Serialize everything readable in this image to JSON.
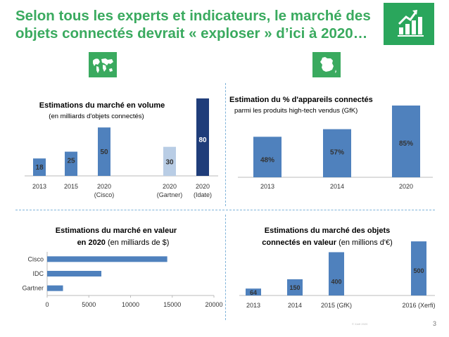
{
  "title_lines": [
    "Selon tous les experts et indicateurs, le marché des",
    "objets connectés devrait « exploser » d’ici à 2020…"
  ],
  "page_number": "3",
  "copyright": "© Xerfi 2020",
  "colors": {
    "title": "#3aaa5f",
    "bar": "#4f81bd",
    "bar_light": "#b9cde5",
    "bar_dark": "#1f3d7a",
    "badge": "#3aaa5f"
  },
  "chart_data": [
    {
      "type": "bar",
      "title": "Estimations du marché en volume",
      "subtitle": "(en milliards d'objets connectés)",
      "categories": [
        [
          "2013"
        ],
        [
          "2015"
        ],
        [
          "2020",
          "(Cisco)"
        ],
        [
          "2020",
          "(Gartner)"
        ],
        [
          "2020",
          "(Idate)"
        ]
      ],
      "values": [
        18,
        25,
        50,
        30,
        80
      ],
      "labels": [
        "18",
        "25",
        "50",
        "30",
        "80"
      ],
      "ylim": [
        0,
        85
      ]
    },
    {
      "type": "bar",
      "title": "Estimation du % d'appareils connectés",
      "subtitle": "parmi les produits high-tech vendus (GfK)",
      "categories": [
        "2013",
        "2014",
        "2020"
      ],
      "values": [
        48,
        57,
        85
      ],
      "labels": [
        "48%",
        "57%",
        "85%"
      ],
      "ylim": [
        0,
        90
      ]
    },
    {
      "type": "bar",
      "orientation": "horizontal",
      "title": "Estimations du marché en valeur",
      "subtitle_bold": "en 2020",
      "subtitle": " (en milliards de $)",
      "categories": [
        "Cisco",
        "IDC",
        "Gartner"
      ],
      "values": [
        14400,
        6500,
        1900
      ],
      "xticks": [
        "0",
        "5000",
        "10000",
        "15000",
        "20000"
      ],
      "xlim": [
        0,
        20000
      ]
    },
    {
      "type": "bar",
      "title": "Estimations du marché des objets",
      "subtitle_bold": "connectés en valeur",
      "subtitle": " (en millions d'€)",
      "categories": [
        "2013",
        "2014",
        "2015 (GfK)",
        "2016 (Xerfi)"
      ],
      "values": [
        64,
        150,
        400,
        500
      ],
      "labels": [
        "64",
        "150",
        "400",
        "500"
      ],
      "ylim": [
        0,
        520
      ]
    }
  ]
}
